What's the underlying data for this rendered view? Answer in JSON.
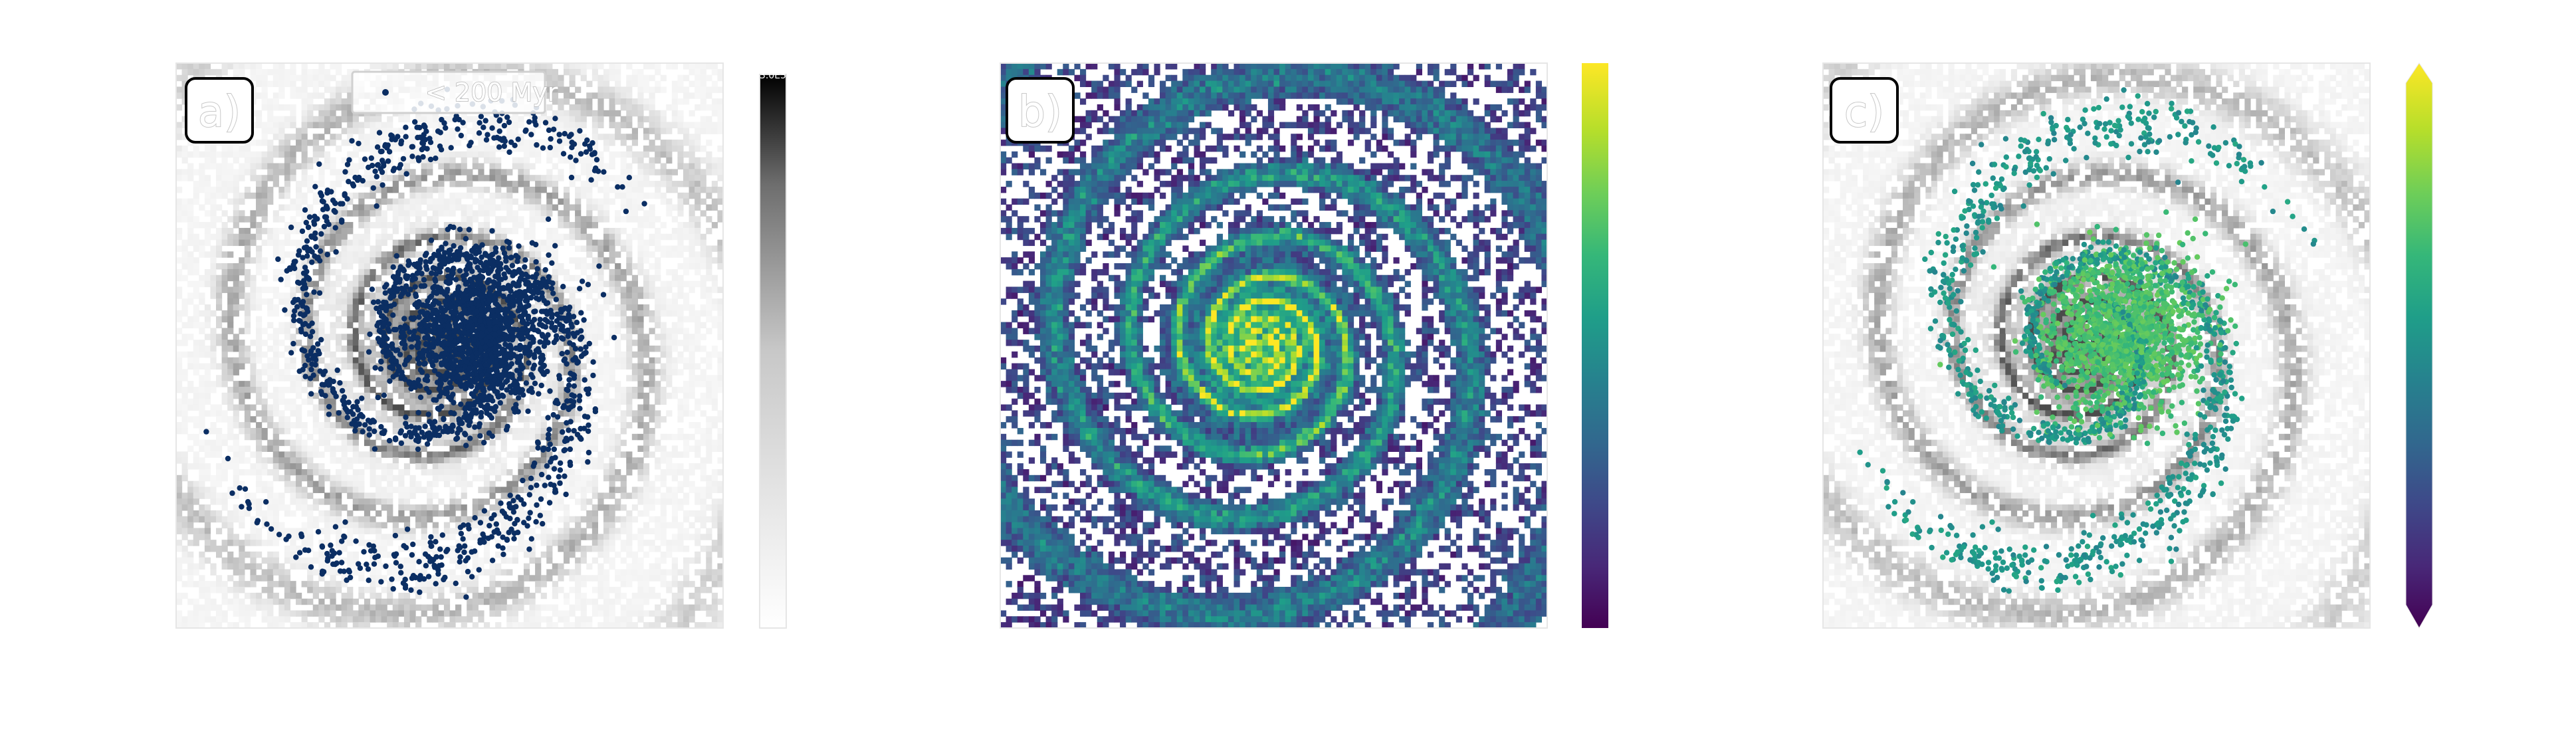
{
  "chart_data": [
    {
      "panel_label": "a)",
      "type": "heatmap",
      "description_colormap": "Greys",
      "background_layer": "gas surface density map (grey)",
      "overlay": {
        "type": "scatter",
        "legend_label": "< 200 Myr",
        "marker_color": "#0b2e63",
        "points": "young star particles concentrated in galactic bulge and spiral arms"
      },
      "colorbar": {
        "colormap": "Greys",
        "top_tick_label": "3.0E5"
      }
    },
    {
      "panel_label": "b)",
      "type": "heatmap",
      "description_colormap": "viridis",
      "background_layer": "viridis-mapped gas map with white empty cells",
      "colorbar": {
        "colormap": "viridis"
      }
    },
    {
      "panel_label": "c)",
      "type": "heatmap",
      "description_colormap": "Greys",
      "background_layer": "gas surface density map (grey)",
      "overlay": {
        "type": "scatter",
        "marker_colormap": "viridis",
        "points": "young star particles colored by value (greenish in bulge, teal in arms)"
      },
      "colorbar": {
        "colormap": "viridis",
        "extend": "both"
      }
    }
  ],
  "colors": {
    "scatter_a": "#0b2e63",
    "viridis": [
      "#440154",
      "#482878",
      "#3e4989",
      "#31688e",
      "#26828e",
      "#1f9e89",
      "#35b779",
      "#6ece58",
      "#b5de2b",
      "#fde725"
    ]
  }
}
